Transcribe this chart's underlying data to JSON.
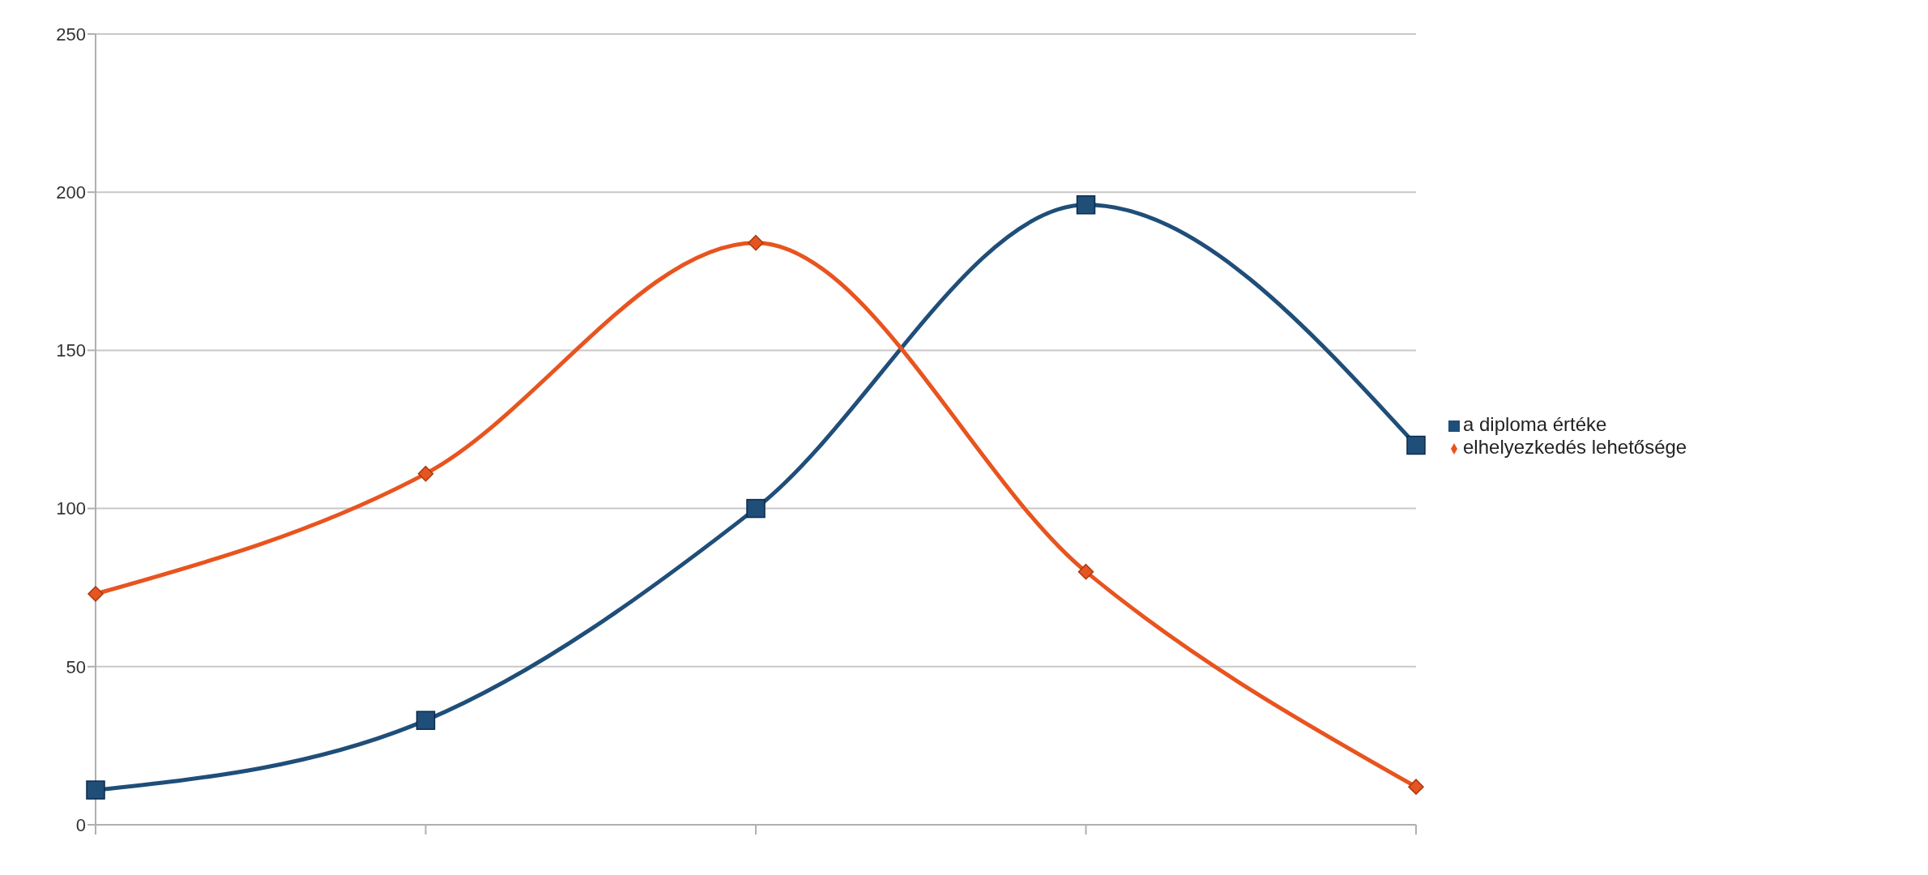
{
  "chart_data": {
    "type": "line",
    "categories": [
      null,
      null,
      null,
      null,
      null
    ],
    "series": [
      {
        "name": "a diploma értéke",
        "color": "#1f4e79",
        "marker": "square",
        "values": [
          11,
          33,
          100,
          196,
          120
        ]
      },
      {
        "name": "elhelyezkedés lehetősége",
        "color": "#e8541f",
        "marker": "diamond",
        "values": [
          73,
          111,
          184,
          80,
          12
        ]
      }
    ],
    "ylim": [
      0,
      250
    ],
    "yticks": [
      0,
      50,
      100,
      150,
      200,
      250
    ],
    "grid": "y",
    "legend": "right",
    "tick_labels": "y"
  }
}
